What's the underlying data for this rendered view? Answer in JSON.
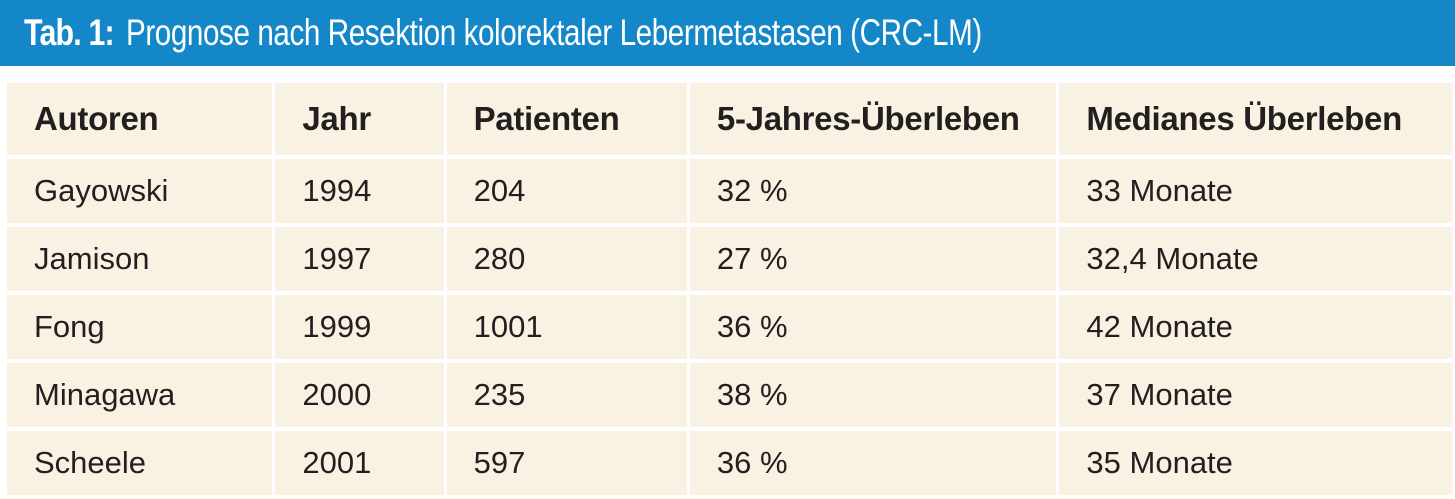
{
  "title": {
    "label": "Tab. 1:",
    "text": "Prognose nach Resektion kolorektaler Lebermetastasen (CRC-LM)"
  },
  "colors": {
    "title_bar": "#1487c9",
    "title_text": "#ffffff",
    "cell_background": "#f9f2e3",
    "cell_text": "#231f20"
  },
  "table": {
    "headers": [
      "Autoren",
      "Jahr",
      "Patienten",
      "5-Jahres-Überleben",
      "Medianes Überleben"
    ],
    "rows": [
      [
        "Gayowski",
        "1994",
        "204",
        "32 %",
        "33 Monate"
      ],
      [
        "Jamison",
        "1997",
        "280",
        "27 %",
        "32,4 Monate"
      ],
      [
        "Fong",
        "1999",
        "1001",
        "36 %",
        "42 Monate"
      ],
      [
        "Minagawa",
        "2000",
        "235",
        "38 %",
        "37 Monate"
      ],
      [
        "Scheele",
        "2001",
        "597",
        "36 %",
        "35 Monate"
      ]
    ]
  }
}
